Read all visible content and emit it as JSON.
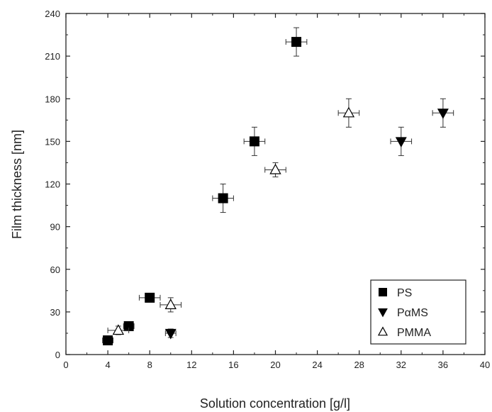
{
  "chart_data": {
    "type": "scatter",
    "xlabel": "Solution concentration [g/l]",
    "ylabel": "Film thickness [nm]",
    "xlim": [
      0,
      40
    ],
    "ylim": [
      0,
      240
    ],
    "xticks": [
      0,
      4,
      8,
      12,
      16,
      20,
      24,
      28,
      32,
      36,
      40
    ],
    "yticks": [
      0,
      30,
      60,
      90,
      120,
      150,
      180,
      210,
      240
    ],
    "x_tick_labels": [
      "0",
      "4",
      "8",
      "12",
      "16",
      "20",
      "24",
      "28",
      "32",
      "36",
      "40"
    ],
    "y_tick_labels": [
      "0",
      "30",
      "60",
      "90",
      "120",
      "150",
      "180",
      "210",
      "240"
    ],
    "grid": false,
    "legend_position": "bottom-right",
    "series": [
      {
        "name": "PS",
        "marker": "square-filled",
        "color": "#000000",
        "points": [
          {
            "x": 4,
            "y": 10,
            "xerr": 0.5,
            "yerr": 0
          },
          {
            "x": 6,
            "y": 20,
            "xerr": 0.5,
            "yerr": 0
          },
          {
            "x": 8,
            "y": 40,
            "xerr": 1,
            "yerr": 0
          },
          {
            "x": 15,
            "y": 110,
            "xerr": 1,
            "yerr": 10
          },
          {
            "x": 18,
            "y": 150,
            "xerr": 1,
            "yerr": 10
          },
          {
            "x": 22,
            "y": 220,
            "xerr": 1,
            "yerr": 10
          }
        ]
      },
      {
        "name": "PαMS",
        "marker": "triangle-down-filled",
        "color": "#000000",
        "points": [
          {
            "x": 10,
            "y": 15,
            "xerr": 0.5,
            "yerr": 3
          },
          {
            "x": 32,
            "y": 150,
            "xerr": 1,
            "yerr": 10
          },
          {
            "x": 36,
            "y": 170,
            "xerr": 1,
            "yerr": 10
          }
        ]
      },
      {
        "name": "PMMA",
        "marker": "triangle-up-open",
        "color": "#000000",
        "points": [
          {
            "x": 5,
            "y": 17,
            "xerr": 1,
            "yerr": 3
          },
          {
            "x": 10,
            "y": 35,
            "xerr": 1,
            "yerr": 5
          },
          {
            "x": 20,
            "y": 130,
            "xerr": 1,
            "yerr": 5
          },
          {
            "x": 27,
            "y": 170,
            "xerr": 1,
            "yerr": 10
          }
        ]
      }
    ]
  }
}
